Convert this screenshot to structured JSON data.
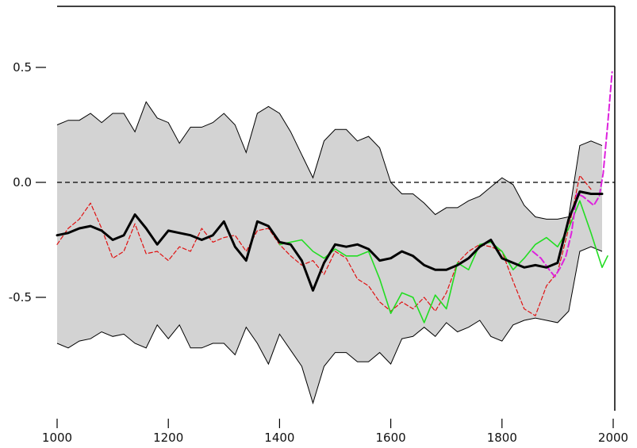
{
  "chart_data": {
    "type": "line",
    "title": "",
    "xlabel": "",
    "ylabel": "",
    "xlim": [
      1000,
      2000
    ],
    "ylim": [
      -0.95,
      0.72
    ],
    "x_ticks": [
      1000,
      1200,
      1400,
      1600,
      1800,
      2000
    ],
    "x_tick_labels": [
      "1000",
      "1200",
      "1400",
      "1600",
      "1800",
      "2000"
    ],
    "y_ticks": [
      0.5,
      0.0,
      -0.5
    ],
    "y_tick_labels": [
      "0.5",
      "0.0",
      "-0.5"
    ],
    "reference_line": {
      "y": 0.0,
      "style": "dashed",
      "color": "#000000"
    },
    "grid": false,
    "uncertainty_band": {
      "color": "#d3d3d3",
      "x": [
        1000,
        1020,
        1040,
        1060,
        1080,
        1100,
        1120,
        1140,
        1160,
        1180,
        1200,
        1220,
        1240,
        1260,
        1280,
        1300,
        1320,
        1340,
        1360,
        1380,
        1400,
        1420,
        1440,
        1460,
        1480,
        1500,
        1520,
        1540,
        1560,
        1580,
        1600,
        1620,
        1640,
        1660,
        1680,
        1700,
        1720,
        1740,
        1760,
        1780,
        1800,
        1820,
        1840,
        1860,
        1880,
        1900,
        1920,
        1940,
        1960,
        1980
      ],
      "upper": [
        0.25,
        0.27,
        0.27,
        0.3,
        0.26,
        0.3,
        0.3,
        0.22,
        0.35,
        0.28,
        0.26,
        0.17,
        0.24,
        0.24,
        0.26,
        0.3,
        0.25,
        0.13,
        0.3,
        0.33,
        0.3,
        0.22,
        0.12,
        0.02,
        0.18,
        0.23,
        0.23,
        0.18,
        0.2,
        0.15,
        0.0,
        -0.05,
        -0.05,
        -0.09,
        -0.14,
        -0.11,
        -0.11,
        -0.08,
        -0.06,
        -0.02,
        0.02,
        -0.01,
        -0.1,
        -0.15,
        -0.16,
        -0.16,
        -0.15,
        0.16,
        0.18,
        0.16
      ],
      "lower": [
        -0.7,
        -0.72,
        -0.69,
        -0.68,
        -0.65,
        -0.67,
        -0.66,
        -0.7,
        -0.72,
        -0.62,
        -0.68,
        -0.62,
        -0.72,
        -0.72,
        -0.7,
        -0.7,
        -0.75,
        -0.63,
        -0.7,
        -0.79,
        -0.66,
        -0.73,
        -0.8,
        -0.96,
        -0.8,
        -0.74,
        -0.74,
        -0.78,
        -0.78,
        -0.74,
        -0.79,
        -0.68,
        -0.67,
        -0.63,
        -0.67,
        -0.61,
        -0.65,
        -0.63,
        -0.6,
        -0.67,
        -0.69,
        -0.62,
        -0.6,
        -0.59,
        -0.6,
        -0.61,
        -0.56,
        -0.3,
        -0.28,
        -0.3
      ]
    },
    "series": [
      {
        "color": "#000000",
        "width": 3,
        "dash": "none",
        "x": [
          1000,
          1020,
          1040,
          1060,
          1080,
          1100,
          1120,
          1140,
          1160,
          1180,
          1200,
          1220,
          1240,
          1260,
          1280,
          1300,
          1320,
          1340,
          1360,
          1380,
          1400,
          1420,
          1440,
          1460,
          1480,
          1500,
          1520,
          1540,
          1560,
          1580,
          1600,
          1620,
          1640,
          1660,
          1680,
          1700,
          1720,
          1740,
          1760,
          1780,
          1800,
          1820,
          1840,
          1860,
          1880,
          1900,
          1920,
          1940,
          1960,
          1980
        ],
        "y": [
          -0.23,
          -0.22,
          -0.2,
          -0.19,
          -0.21,
          -0.25,
          -0.23,
          -0.14,
          -0.2,
          -0.27,
          -0.21,
          -0.22,
          -0.23,
          -0.25,
          -0.23,
          -0.17,
          -0.28,
          -0.34,
          -0.17,
          -0.19,
          -0.26,
          -0.27,
          -0.34,
          -0.47,
          -0.35,
          -0.27,
          -0.28,
          -0.27,
          -0.29,
          -0.34,
          -0.33,
          -0.3,
          -0.32,
          -0.36,
          -0.38,
          -0.38,
          -0.36,
          -0.33,
          -0.28,
          -0.25,
          -0.33,
          -0.35,
          -0.37,
          -0.36,
          -0.37,
          -0.35,
          -0.16,
          -0.04,
          -0.05,
          -0.05
        ]
      },
      {
        "color": "#e01010",
        "width": 1.2,
        "dash": "5,3",
        "x": [
          1000,
          1020,
          1040,
          1060,
          1080,
          1100,
          1120,
          1140,
          1160,
          1180,
          1200,
          1220,
          1240,
          1260,
          1280,
          1300,
          1320,
          1340,
          1360,
          1380,
          1400,
          1420,
          1440,
          1460,
          1480,
          1500,
          1520,
          1540,
          1560,
          1580,
          1600,
          1620,
          1640,
          1660,
          1680,
          1700,
          1720,
          1740,
          1760,
          1780,
          1800,
          1820,
          1840,
          1860,
          1880,
          1900,
          1920,
          1940,
          1960
        ],
        "y": [
          -0.27,
          -0.2,
          -0.16,
          -0.09,
          -0.2,
          -0.33,
          -0.3,
          -0.18,
          -0.31,
          -0.3,
          -0.34,
          -0.28,
          -0.3,
          -0.2,
          -0.26,
          -0.24,
          -0.23,
          -0.3,
          -0.21,
          -0.2,
          -0.27,
          -0.32,
          -0.36,
          -0.34,
          -0.4,
          -0.3,
          -0.33,
          -0.42,
          -0.45,
          -0.52,
          -0.56,
          -0.52,
          -0.55,
          -0.5,
          -0.56,
          -0.48,
          -0.35,
          -0.3,
          -0.27,
          -0.28,
          -0.3,
          -0.43,
          -0.55,
          -0.58,
          -0.45,
          -0.39,
          -0.2,
          0.03,
          -0.03
        ]
      },
      {
        "color": "#22dd22",
        "width": 1.6,
        "dash": "none",
        "x": [
          1400,
          1420,
          1440,
          1460,
          1480,
          1500,
          1520,
          1540,
          1560,
          1580,
          1600,
          1620,
          1640,
          1660,
          1680,
          1700,
          1720,
          1740,
          1760,
          1780,
          1800,
          1820,
          1840,
          1860,
          1880,
          1900,
          1920,
          1940,
          1960,
          1980,
          1990
        ],
        "y": [
          -0.27,
          -0.26,
          -0.25,
          -0.3,
          -0.33,
          -0.29,
          -0.32,
          -0.32,
          -0.3,
          -0.42,
          -0.57,
          -0.48,
          -0.5,
          -0.61,
          -0.49,
          -0.55,
          -0.35,
          -0.38,
          -0.27,
          -0.26,
          -0.3,
          -0.38,
          -0.33,
          -0.27,
          -0.24,
          -0.28,
          -0.2,
          -0.08,
          -0.22,
          -0.37,
          -0.32
        ]
      },
      {
        "color": "#dd22dd",
        "width": 2,
        "dash": "8,4",
        "x": [
          1855,
          1870,
          1885,
          1895,
          1905,
          1915,
          1925,
          1935,
          1945,
          1955,
          1965,
          1975,
          1982,
          1990,
          1998
        ],
        "y": [
          -0.3,
          -0.33,
          -0.38,
          -0.41,
          -0.37,
          -0.32,
          -0.22,
          -0.05,
          -0.06,
          -0.08,
          -0.1,
          -0.06,
          0.04,
          0.25,
          0.48
        ]
      }
    ]
  }
}
